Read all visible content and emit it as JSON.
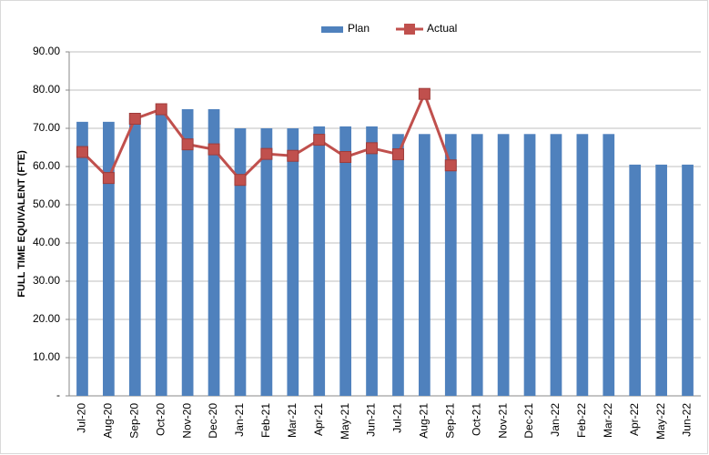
{
  "chart_data": {
    "type": "bar",
    "y_label": "FULL TIME EQUIVALENT (FTE)",
    "categories": [
      "Jul-20",
      "Aug-20",
      "Sep-20",
      "Oct-20",
      "Nov-20",
      "Dec-20",
      "Jan-21",
      "Feb-21",
      "Mar-21",
      "Apr-21",
      "May-21",
      "Jun-21",
      "Jul-21",
      "Aug-21",
      "Sep-21",
      "Oct-21",
      "Nov-21",
      "Dec-21",
      "Jan-22",
      "Feb-22",
      "Mar-22",
      "Apr-22",
      "May-22",
      "Jun-22"
    ],
    "series": [
      {
        "name": "Plan",
        "type": "bar",
        "color": "#4f81bd",
        "values": [
          71.7,
          71.7,
          72.5,
          75,
          75,
          75,
          70,
          70,
          70,
          70.5,
          70.5,
          70.5,
          68.5,
          68.5,
          68.5,
          68.5,
          68.5,
          68.5,
          68.5,
          68.5,
          68.5,
          60.5,
          60.5,
          60.5
        ]
      },
      {
        "name": "Actual",
        "type": "line",
        "color": "#c0504d",
        "values": [
          63.8,
          57,
          72.5,
          75,
          65.8,
          64.5,
          56.5,
          63.3,
          62.8,
          67,
          62.5,
          64.8,
          63.2,
          79,
          60.3,
          null,
          null,
          null,
          null,
          null,
          null,
          null,
          null,
          null
        ]
      }
    ],
    "ylim": [
      0,
      90
    ],
    "yticks": [
      {
        "value": 0,
        "label": "-"
      },
      {
        "value": 10,
        "label": "10.00"
      },
      {
        "value": 20,
        "label": "20.00"
      },
      {
        "value": 30,
        "label": "30.00"
      },
      {
        "value": 40,
        "label": "40.00"
      },
      {
        "value": 50,
        "label": "50.00"
      },
      {
        "value": 60,
        "label": "60.00"
      },
      {
        "value": 70,
        "label": "70.00"
      },
      {
        "value": 80,
        "label": "80.00"
      },
      {
        "value": 90,
        "label": "90.00"
      }
    ],
    "grid": true,
    "legend": "top"
  }
}
